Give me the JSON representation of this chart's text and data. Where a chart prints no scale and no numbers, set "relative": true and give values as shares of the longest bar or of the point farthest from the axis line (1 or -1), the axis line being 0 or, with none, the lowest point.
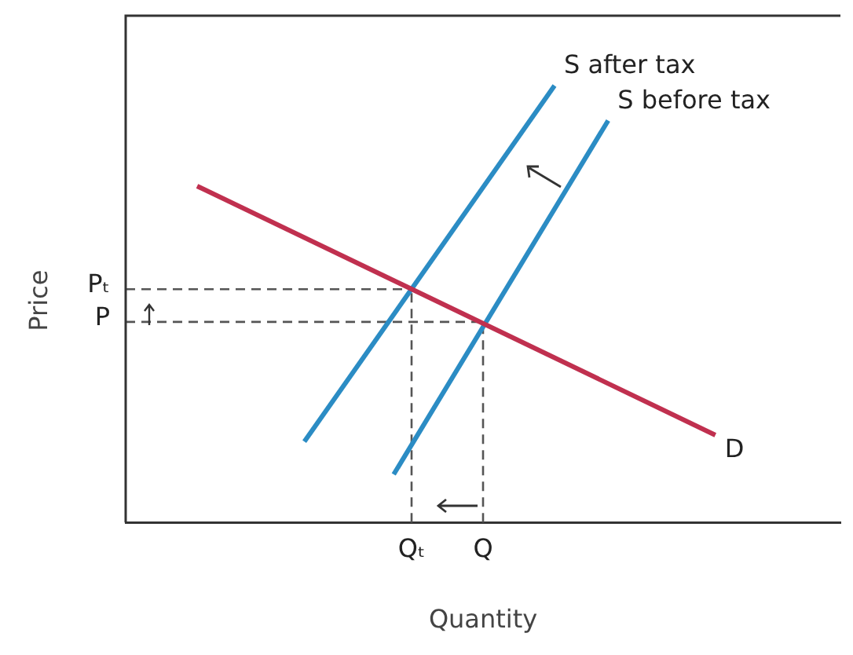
{
  "chart_data": {
    "type": "line",
    "relative": true,
    "xlabel": "Quantity",
    "ylabel": "Price",
    "legend": false,
    "grid": false,
    "marker": "none",
    "categories": [
      null,
      null,
      null,
      null,
      null,
      null,
      null,
      null,
      null,
      null,
      null,
      null,
      null,
      null,
      null,
      null,
      "Qₜ",
      null,
      null,
      null,
      "Q",
      null,
      null,
      null,
      null,
      null,
      null,
      null,
      null,
      null,
      null,
      null,
      null,
      null,
      null,
      null,
      null,
      null,
      null,
      null,
      null
    ],
    "series": [
      {
        "name": "D",
        "color": "#c0304f",
        "values": [
          null,
          null,
          null,
          null,
          0.77,
          null,
          null,
          null,
          null,
          null,
          null,
          null,
          null,
          null,
          null,
          null,
          null,
          null,
          null,
          null,
          null,
          null,
          null,
          null,
          null,
          null,
          null,
          null,
          null,
          null,
          null,
          null,
          null,
          0.2,
          null,
          null,
          null,
          null,
          null,
          null,
          null
        ]
      },
      {
        "name": "S after tax",
        "color": "#2b8cc4",
        "values": [
          null,
          null,
          null,
          null,
          null,
          null,
          null,
          null,
          null,
          null,
          0.185,
          null,
          null,
          null,
          null,
          null,
          null,
          null,
          null,
          null,
          null,
          null,
          null,
          null,
          1,
          null,
          null,
          null,
          null,
          null,
          null,
          null,
          null,
          null,
          null,
          null,
          null,
          null,
          null,
          null,
          null
        ]
      },
      {
        "name": "S before tax",
        "color": "#2b8cc4",
        "values": [
          null,
          null,
          null,
          null,
          null,
          null,
          null,
          null,
          null,
          null,
          null,
          null,
          null,
          null,
          null,
          0.11,
          null,
          null,
          null,
          null,
          null,
          null,
          null,
          null,
          null,
          null,
          null,
          0.92,
          null,
          null,
          null,
          null,
          null,
          null,
          null,
          null,
          null,
          null,
          null,
          null,
          null
        ]
      }
    ],
    "ref_lines": [
      {
        "axis": "y",
        "value": 0.534,
        "label": "Pₜ",
        "color": "#555555",
        "line_style": "dashed"
      },
      {
        "axis": "y",
        "value": 0.459,
        "label": "P",
        "color": "#555555",
        "line_style": "dashed"
      },
      {
        "axis": "x",
        "value": "Qₜ",
        "color": "#555555",
        "line_style": "dashed"
      },
      {
        "axis": "x",
        "value": "Q",
        "color": "#555555",
        "line_style": "dashed"
      }
    ]
  }
}
